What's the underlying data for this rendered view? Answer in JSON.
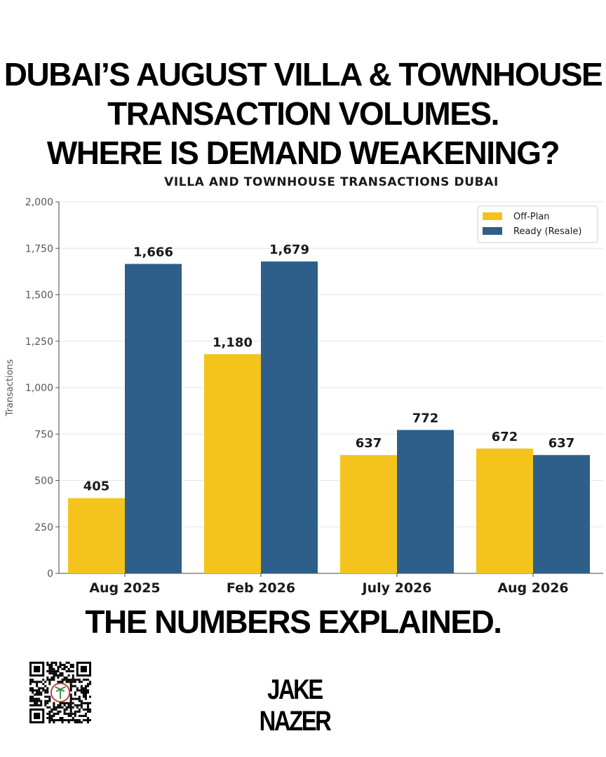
{
  "headline": {
    "line1": "DUBAI’S AUGUST VILLA & TOWNHOUSE",
    "line2": "TRANSACTION VOLUMES.",
    "line3": "WHERE IS DEMAND WEAKENING?"
  },
  "section_heading": "THE NUMBERS EXPLAINED.",
  "brand": "JAKE NAZER",
  "chart_data": {
    "type": "bar",
    "title": "VILLA AND TOWNHOUSE TRANSACTIONS DUBAI",
    "xlabel": "",
    "ylabel": "Transactions",
    "categories": [
      "Aug 2025",
      "Feb 2026",
      "July 2026",
      "Aug 2026"
    ],
    "series": [
      {
        "name": "Off-Plan",
        "values": [
          405,
          1180,
          637,
          672
        ],
        "color": "#F4C41D"
      },
      {
        "name": "Ready (Resale)",
        "values": [
          1666,
          1679,
          772,
          637
        ],
        "color": "#2E5F8A"
      }
    ],
    "ylim": [
      0,
      2000
    ],
    "yticks": [
      0,
      250,
      500,
      750,
      1000,
      1250,
      1500,
      1750,
      2000
    ],
    "ytick_labels": [
      "0",
      "250",
      "500",
      "750",
      "1,000",
      "1,250",
      "1,500",
      "1,750",
      "2,000"
    ],
    "data_labels": [
      [
        "405",
        "1,180",
        "637",
        "672"
      ],
      [
        "1,666",
        "1,679",
        "772",
        "637"
      ]
    ],
    "grid": true,
    "legend_position": "top-right"
  }
}
